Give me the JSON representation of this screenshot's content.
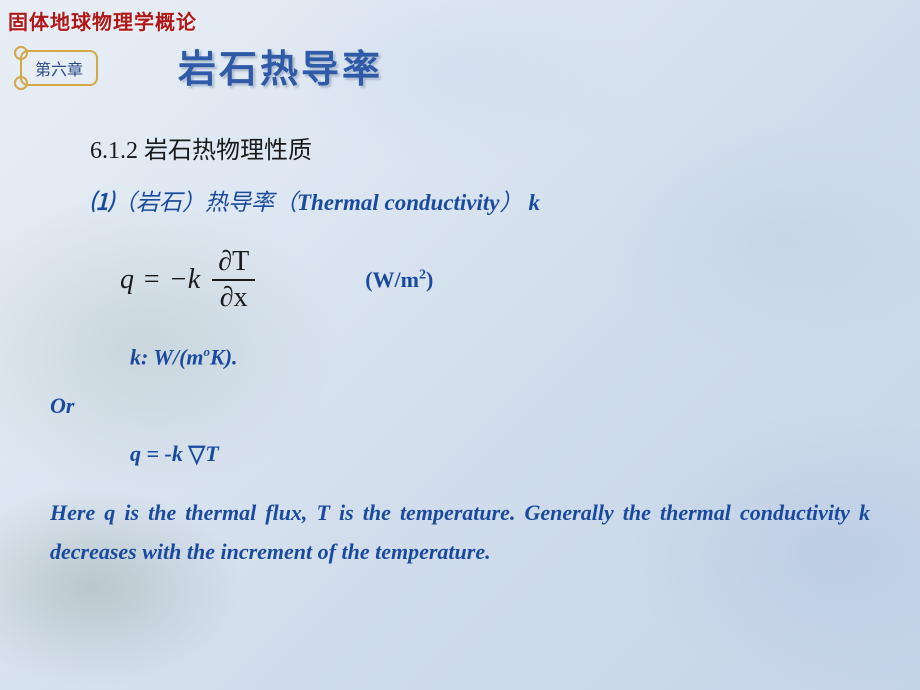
{
  "header": {
    "course_title": "固体地球物理学概论",
    "chapter_label": "第六章",
    "slide_title": "岩石热导率"
  },
  "section": {
    "number": "6.1.2 岩石热物理性质",
    "sub_index": "⑴",
    "sub_cn_prefix": "（岩石）热导率（",
    "sub_en": "Thermal conductivity",
    "sub_cn_suffix": "）",
    "sub_var": "k"
  },
  "equation": {
    "lhs": "q",
    "eq": " = ",
    "minus_k": "−k",
    "num": "∂T",
    "den": "∂x",
    "unit": "(W/m",
    "unit_sup": "2",
    "unit_close": ")"
  },
  "k_unit": {
    "prefix": "k:  W/(m",
    "sup": "o",
    "suffix": "K)."
  },
  "or_label": "Or",
  "q_line": {
    "prefix": "q = -k ",
    "nabla": "▽",
    "suffix": "T"
  },
  "description": "Here q is the thermal flux, T is the temperature. Generally the thermal conductivity  k decreases with the increment of the temperature.",
  "colors": {
    "title_red": "#b01818",
    "title_blue": "#2e5aa8",
    "text_blue": "#1a4a9e",
    "text_black": "#1a1a1a",
    "badge_border": "#d4a74a",
    "bg_start": "#e8eef5",
    "bg_end": "#c5d5e8"
  },
  "fonts": {
    "header_size": 20,
    "title_size": 38,
    "body_size": 22,
    "section_size": 24,
    "equation_size": 28
  }
}
